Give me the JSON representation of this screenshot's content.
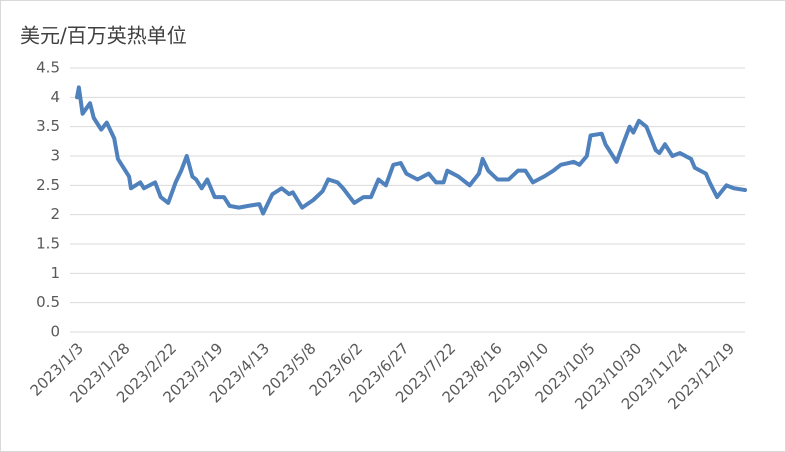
{
  "chart_data": {
    "type": "line",
    "title": "美元/百万英热单位",
    "color": "#4f81bd",
    "x": [
      "2023/1/3",
      "2023/1/4",
      "2023/1/6",
      "2023/1/10",
      "2023/1/12",
      "2023/1/16",
      "2023/1/19",
      "2023/1/23",
      "2023/1/25",
      "2023/1/27",
      "2023/1/31",
      "2023/2/1",
      "2023/2/6",
      "2023/2/8",
      "2023/2/14",
      "2023/2/17",
      "2023/2/21",
      "2023/2/25",
      "2023/2/28",
      "2023/3/3",
      "2023/3/6",
      "2023/3/8",
      "2023/3/11",
      "2023/3/14",
      "2023/3/18",
      "2023/3/23",
      "2023/3/26",
      "2023/3/31",
      "2023/4/5",
      "2023/4/11",
      "2023/4/13",
      "2023/4/18",
      "2023/4/23",
      "2023/4/27",
      "2023/4/29",
      "2023/5/4",
      "2023/5/10",
      "2023/5/15",
      "2023/5/18",
      "2023/5/23",
      "2023/5/26",
      "2023/6/1",
      "2023/6/6",
      "2023/6/10",
      "2023/6/14",
      "2023/6/18",
      "2023/6/22",
      "2023/6/26",
      "2023/6/29",
      "2023/7/5",
      "2023/7/11",
      "2023/7/15",
      "2023/7/19",
      "2023/7/21",
      "2023/7/27",
      "2023/8/2",
      "2023/8/7",
      "2023/8/9",
      "2023/8/12",
      "2023/8/17",
      "2023/8/23",
      "2023/8/28",
      "2023/9/1",
      "2023/9/5",
      "2023/9/11",
      "2023/9/16",
      "2023/9/20",
      "2023/9/27",
      "2023/9/30",
      "2023/10/4",
      "2023/10/6",
      "2023/10/12",
      "2023/10/14",
      "2023/10/20",
      "2023/10/24",
      "2023/10/27",
      "2023/10/29",
      "2023/11/1",
      "2023/11/5",
      "2023/11/10",
      "2023/11/12",
      "2023/11/15",
      "2023/11/19",
      "2023/11/23",
      "2023/11/29",
      "2023/12/1",
      "2023/12/7",
      "2023/12/9",
      "2023/12/13",
      "2023/12/18",
      "2023/12/22",
      "2023/12/28"
    ],
    "values": [
      4.0,
      4.17,
      3.72,
      3.9,
      3.65,
      3.45,
      3.57,
      3.3,
      2.95,
      2.85,
      2.65,
      2.45,
      2.55,
      2.45,
      2.55,
      2.3,
      2.2,
      2.55,
      2.75,
      3.0,
      2.65,
      2.6,
      2.45,
      2.6,
      2.3,
      2.3,
      2.15,
      2.12,
      2.15,
      2.18,
      2.02,
      2.35,
      2.45,
      2.35,
      2.38,
      2.12,
      2.25,
      2.4,
      2.6,
      2.55,
      2.45,
      2.2,
      2.3,
      2.3,
      2.6,
      2.5,
      2.85,
      2.88,
      2.7,
      2.6,
      2.7,
      2.55,
      2.55,
      2.75,
      2.65,
      2.5,
      2.7,
      2.95,
      2.75,
      2.6,
      2.6,
      2.75,
      2.75,
      2.55,
      2.65,
      2.75,
      2.85,
      2.9,
      2.85,
      3.0,
      3.35,
      3.38,
      3.2,
      2.9,
      3.25,
      3.5,
      3.4,
      3.6,
      3.5,
      3.1,
      3.05,
      3.2,
      3.0,
      3.05,
      2.95,
      2.8,
      2.7,
      2.55,
      2.3,
      2.5,
      2.45,
      2.42
    ],
    "xlim": [
      "2023/1/3",
      "2023/12/28"
    ],
    "xticks": [
      "2023/1/3",
      "2023/1/28",
      "2023/2/22",
      "2023/3/19",
      "2023/4/13",
      "2023/5/8",
      "2023/6/2",
      "2023/6/27",
      "2023/7/22",
      "2023/8/16",
      "2023/9/10",
      "2023/10/5",
      "2023/10/30",
      "2023/11/24",
      "2023/12/19"
    ],
    "ylim": [
      0,
      4.5
    ],
    "yticks": [
      0,
      0.5,
      1,
      1.5,
      2,
      2.5,
      3,
      3.5,
      4,
      4.5
    ],
    "grid": true
  }
}
